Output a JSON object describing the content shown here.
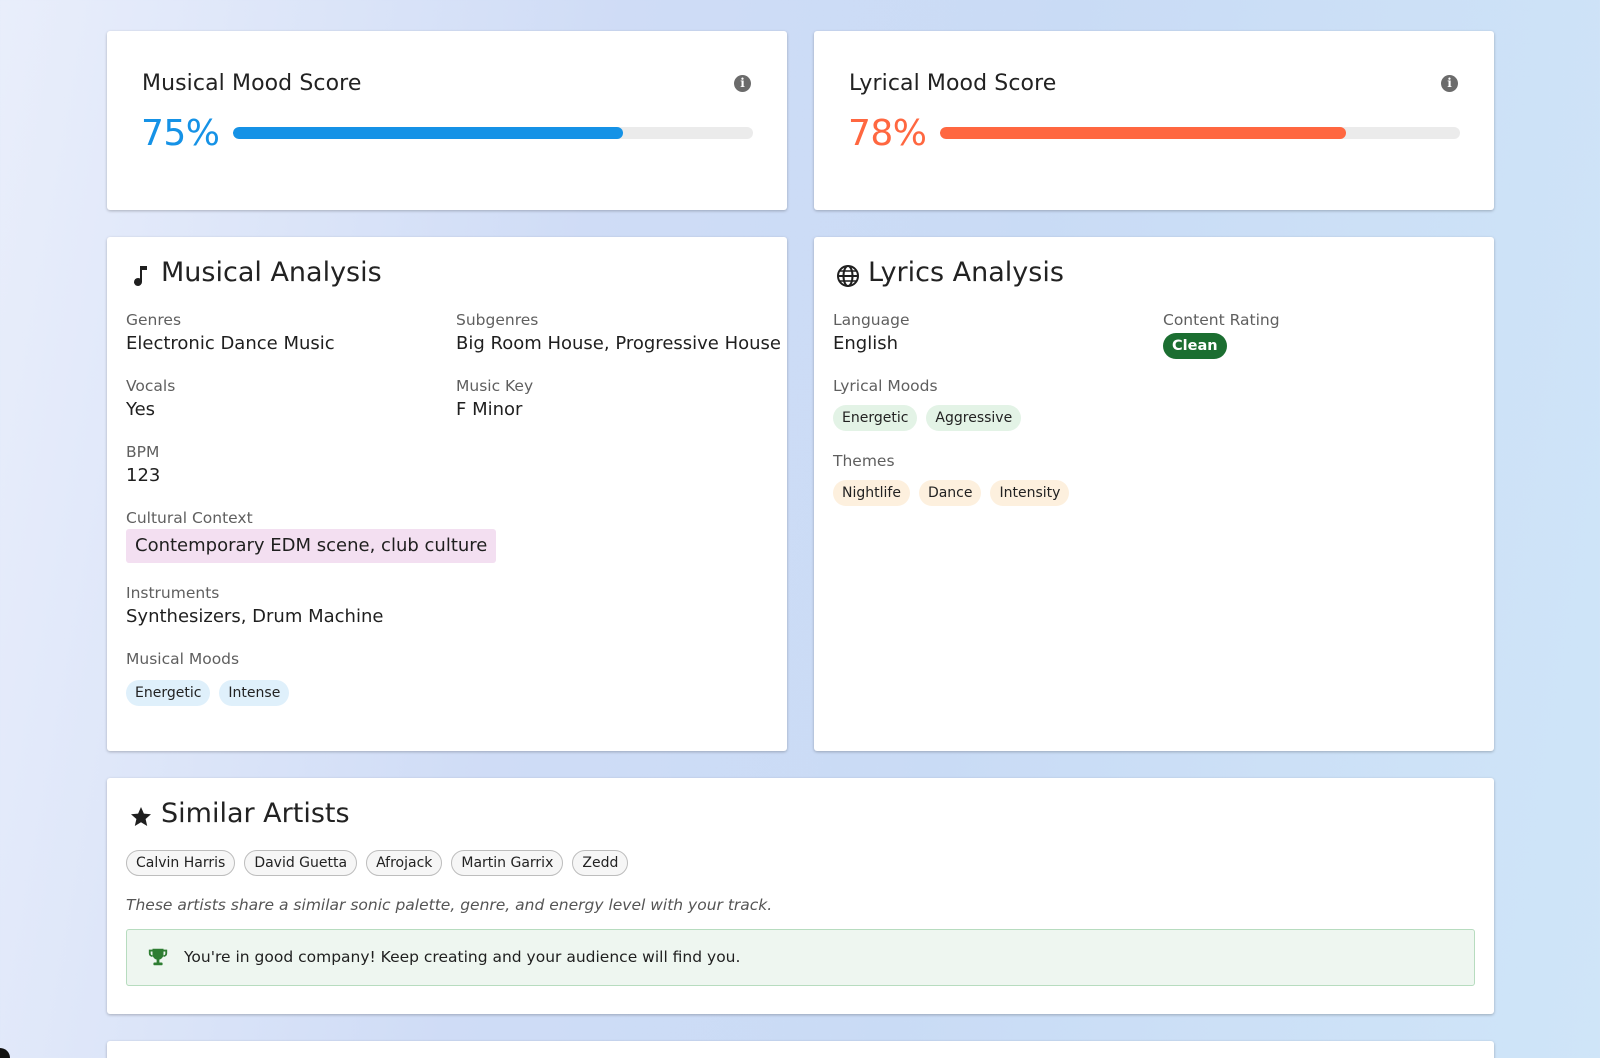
{
  "musical_score": {
    "title": "Musical Mood Score",
    "value_text": "75%",
    "percent": 75,
    "color": "#1592e6"
  },
  "lyrical_score": {
    "title": "Lyrical Mood Score",
    "value_text": "78%",
    "percent": 78,
    "color": "#ff6740"
  },
  "musical_analysis": {
    "title": "Musical Analysis",
    "icon": "music-note-icon",
    "genres_label": "Genres",
    "genres_value": "Electronic Dance Music",
    "subgenres_label": "Subgenres",
    "subgenres_value": "Big Room House, Progressive House",
    "vocals_label": "Vocals",
    "vocals_value": "Yes",
    "key_label": "Music Key",
    "key_value": "F Minor",
    "bpm_label": "BPM",
    "bpm_value": "123",
    "cultural_label": "Cultural Context",
    "cultural_value": "Contemporary EDM scene, club culture",
    "instruments_label": "Instruments",
    "instruments_value": "Synthesizers, Drum Machine",
    "moods_label": "Musical Moods",
    "moods": [
      "Energetic",
      "Intense"
    ]
  },
  "lyrics_analysis": {
    "title": "Lyrics Analysis",
    "icon": "globe-icon",
    "language_label": "Language",
    "language_value": "English",
    "rating_label": "Content Rating",
    "rating_value": "Clean",
    "moods_label": "Lyrical Moods",
    "moods": [
      "Energetic",
      "Aggressive"
    ],
    "themes_label": "Themes",
    "themes": [
      "Nightlife",
      "Dance",
      "Intensity"
    ]
  },
  "similar_artists": {
    "title": "Similar Artists",
    "icon": "star-icon",
    "artists": [
      "Calvin Harris",
      "David Guetta",
      "Afrojack",
      "Martin Garrix",
      "Zedd"
    ],
    "note": "These artists share a similar sonic palette, genre, and energy level with your track.",
    "alert_icon": "trophy-icon",
    "alert_text": "You're in good company! Keep creating and your audience will find you."
  }
}
